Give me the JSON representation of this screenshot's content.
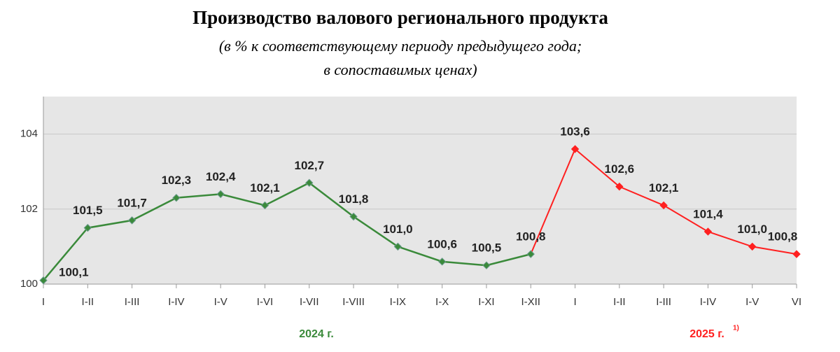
{
  "chart_data": {
    "type": "line",
    "title": "Производство валового регионального продукта",
    "subtitle": [
      "(в % к соответствующему периоду предыдущего года;",
      "в сопоставимых ценах)"
    ],
    "categories": [
      "I",
      "I-II",
      "I-III",
      "I-IV",
      "I-V",
      "I-VI",
      "I-VII",
      "I-VIII",
      "I-IX",
      "I-X",
      "I-XI",
      "I-XII",
      "I",
      "I-II",
      "I-III",
      "I-IV",
      "I-V",
      "VI"
    ],
    "series": [
      {
        "name": "2024 г.",
        "color": "#3a8a3a",
        "values": [
          100.1,
          101.5,
          101.7,
          102.3,
          102.4,
          102.1,
          102.7,
          101.8,
          101.0,
          100.6,
          100.5,
          100.8,
          null,
          null,
          null,
          null,
          null,
          null
        ],
        "value_labels": [
          "100,1",
          "101,5",
          "101,7",
          "102,3",
          "102,4",
          "102,1",
          "102,7",
          "101,8",
          "101,0",
          "100,6",
          "100,5",
          "100,8",
          null,
          null,
          null,
          null,
          null,
          null
        ]
      },
      {
        "name": "2025 г.",
        "note_mark": "1)",
        "color": "#ff2020",
        "values": [
          null,
          null,
          null,
          null,
          null,
          null,
          null,
          null,
          null,
          null,
          null,
          100.8,
          103.6,
          102.6,
          102.1,
          101.4,
          101.0,
          100.8
        ],
        "value_labels": [
          null,
          null,
          null,
          null,
          null,
          null,
          null,
          null,
          null,
          null,
          null,
          null,
          "103,6",
          "102,6",
          "102,1",
          "101,4",
          "101,0",
          "100,8"
        ]
      }
    ],
    "ylim": [
      100,
      105
    ],
    "yticks": [
      100,
      102,
      104
    ],
    "grid": true
  }
}
